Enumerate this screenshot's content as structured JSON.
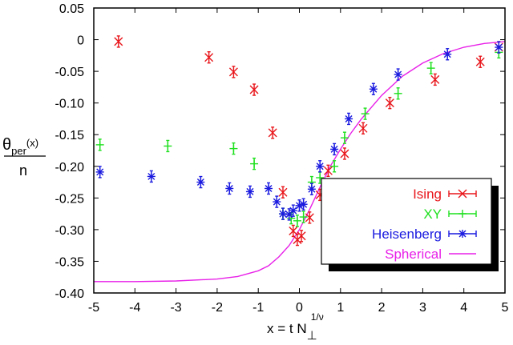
{
  "chart_data": {
    "type": "scatter",
    "title": "",
    "xlabel": {
      "main": "x = t N",
      "sub": "⊥",
      "sup": "1/ν"
    },
    "ylabel": {
      "theta": "θ",
      "sub": "per",
      "arg": "(x)",
      "denominator": "n"
    },
    "xlim": [
      -5,
      5
    ],
    "ylim": [
      -0.4,
      0.05
    ],
    "x_ticks": [
      -5,
      -4,
      -3,
      -2,
      -1,
      0,
      1,
      2,
      3,
      4,
      5
    ],
    "x_tick_labels": [
      "-5",
      "-4",
      "-3",
      "-2",
      "-1",
      "0",
      "1",
      "2",
      "3",
      "4",
      "5"
    ],
    "y_ticks": [
      0.05,
      0,
      -0.05,
      -0.1,
      -0.15,
      -0.2,
      -0.25,
      -0.3,
      -0.35,
      -0.4
    ],
    "y_tick_labels": [
      "0.05",
      "0",
      "-0.05",
      "-0.10",
      "-0.15",
      "-0.20",
      "-0.25",
      "-0.30",
      "-0.35",
      "-0.40"
    ],
    "grid": false,
    "legend_position": "bottom-right",
    "series": [
      {
        "name": "Ising",
        "color": "#e8161b",
        "marker": "x",
        "error_bars": true,
        "points": [
          {
            "x": -4.4,
            "y": -0.003
          },
          {
            "x": -2.2,
            "y": -0.028
          },
          {
            "x": -1.6,
            "y": -0.051
          },
          {
            "x": -1.1,
            "y": -0.079
          },
          {
            "x": -0.65,
            "y": -0.147
          },
          {
            "x": -0.4,
            "y": -0.241
          },
          {
            "x": -0.15,
            "y": -0.302
          },
          {
            "x": -0.05,
            "y": -0.316
          },
          {
            "x": 0.05,
            "y": -0.31
          },
          {
            "x": 0.25,
            "y": -0.281
          },
          {
            "x": 0.5,
            "y": -0.245
          },
          {
            "x": 0.7,
            "y": -0.207
          },
          {
            "x": 1.1,
            "y": -0.18
          },
          {
            "x": 1.55,
            "y": -0.14
          },
          {
            "x": 2.2,
            "y": -0.1
          },
          {
            "x": 3.3,
            "y": -0.063
          },
          {
            "x": 4.4,
            "y": -0.035
          },
          {
            "x": 4.85,
            "y": -0.012
          }
        ]
      },
      {
        "name": "XY",
        "color": "#1ee01e",
        "marker": "+",
        "error_bars": true,
        "points": [
          {
            "x": -4.85,
            "y": -0.166
          },
          {
            "x": -3.2,
            "y": -0.168
          },
          {
            "x": -1.6,
            "y": -0.172
          },
          {
            "x": -1.1,
            "y": -0.196
          },
          {
            "x": -0.4,
            "y": -0.275
          },
          {
            "x": -0.2,
            "y": -0.282
          },
          {
            "x": -0.05,
            "y": -0.286
          },
          {
            "x": 0.1,
            "y": -0.28
          },
          {
            "x": 0.3,
            "y": -0.225
          },
          {
            "x": 0.5,
            "y": -0.218
          },
          {
            "x": 0.85,
            "y": -0.2
          },
          {
            "x": 1.1,
            "y": -0.155
          },
          {
            "x": 1.6,
            "y": -0.117
          },
          {
            "x": 2.4,
            "y": -0.085
          },
          {
            "x": 3.2,
            "y": -0.045
          },
          {
            "x": 4.85,
            "y": -0.02
          }
        ]
      },
      {
        "name": "Heisenberg",
        "color": "#1a1ae0",
        "marker": "*",
        "error_bars": true,
        "points": [
          {
            "x": -4.85,
            "y": -0.209
          },
          {
            "x": -3.6,
            "y": -0.216
          },
          {
            "x": -2.4,
            "y": -0.225
          },
          {
            "x": -1.7,
            "y": -0.235
          },
          {
            "x": -1.2,
            "y": -0.24
          },
          {
            "x": -0.75,
            "y": -0.235
          },
          {
            "x": -0.55,
            "y": -0.256
          },
          {
            "x": -0.4,
            "y": -0.275
          },
          {
            "x": -0.25,
            "y": -0.276
          },
          {
            "x": -0.15,
            "y": -0.27
          },
          {
            "x": 0.0,
            "y": -0.262
          },
          {
            "x": 0.1,
            "y": -0.26
          },
          {
            "x": 0.3,
            "y": -0.236
          },
          {
            "x": 0.5,
            "y": -0.2
          },
          {
            "x": 0.85,
            "y": -0.173
          },
          {
            "x": 1.2,
            "y": -0.125
          },
          {
            "x": 1.8,
            "y": -0.078
          },
          {
            "x": 2.4,
            "y": -0.055
          },
          {
            "x": 3.6,
            "y": -0.023
          },
          {
            "x": 4.85,
            "y": -0.012
          }
        ]
      },
      {
        "name": "Spherical",
        "color": "#e820e8",
        "marker": "line",
        "error_bars": false,
        "points": [
          {
            "x": -5,
            "y": -0.382
          },
          {
            "x": -4,
            "y": -0.382
          },
          {
            "x": -3,
            "y": -0.381
          },
          {
            "x": -2,
            "y": -0.378
          },
          {
            "x": -1.5,
            "y": -0.374
          },
          {
            "x": -1,
            "y": -0.365
          },
          {
            "x": -0.75,
            "y": -0.357
          },
          {
            "x": -0.5,
            "y": -0.343
          },
          {
            "x": -0.25,
            "y": -0.325
          },
          {
            "x": 0,
            "y": -0.3
          },
          {
            "x": 0.25,
            "y": -0.268
          },
          {
            "x": 0.5,
            "y": -0.233
          },
          {
            "x": 0.75,
            "y": -0.2
          },
          {
            "x": 1,
            "y": -0.173
          },
          {
            "x": 1.25,
            "y": -0.148
          },
          {
            "x": 1.5,
            "y": -0.126
          },
          {
            "x": 2,
            "y": -0.088
          },
          {
            "x": 2.5,
            "y": -0.058
          },
          {
            "x": 3,
            "y": -0.037
          },
          {
            "x": 3.5,
            "y": -0.022
          },
          {
            "x": 4,
            "y": -0.012
          },
          {
            "x": 4.5,
            "y": -0.006
          },
          {
            "x": 5,
            "y": -0.003
          }
        ]
      }
    ]
  }
}
